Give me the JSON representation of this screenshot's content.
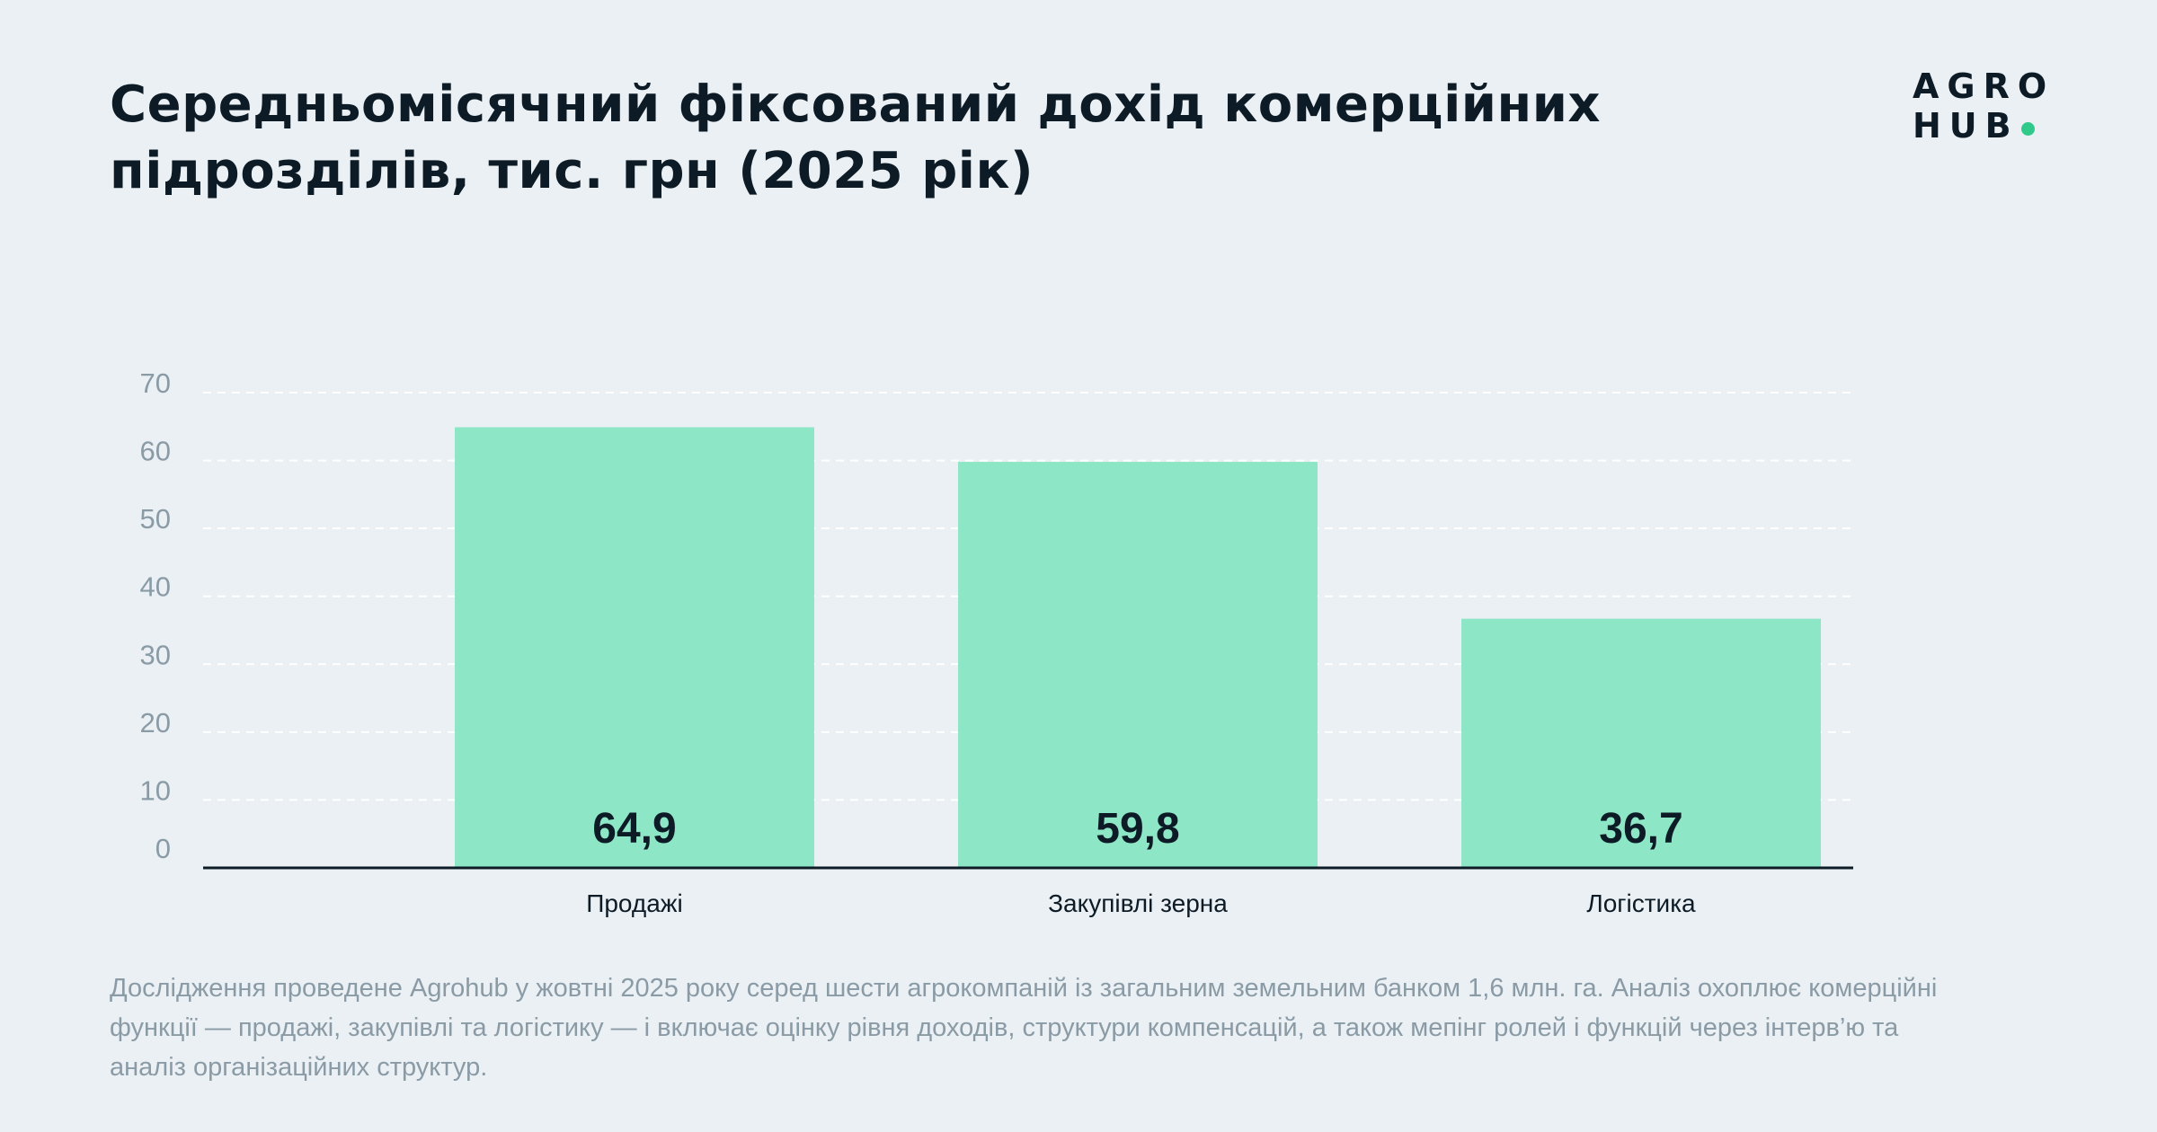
{
  "title": "Середньомісячний фіксований дохід комерційних підрозділів, тис. грн (2025 рік)",
  "logo": {
    "line1": "AGRO",
    "line2": "HUB"
  },
  "footnote": "Дослідження проведене Agrohub у жовтні 2025 року серед шести агрокомпаній із загальним земельним банком 1,6 млн. га. Аналіз охоплює комерційні функції — продажі, закупівлі та логістику — і включає оцінку рівня доходів, структури компенсацій, а також мепінг ролей і функцій через інтерв’ю та аналіз організаційних структур.",
  "colors": {
    "bar": "#8de6c5",
    "accent": "#2fca8a",
    "text": "#0d1b26",
    "muted": "#8a9ba6",
    "background": "#eaf0f4"
  },
  "chart_data": {
    "type": "bar",
    "title": "Середньомісячний фіксований дохід комерційних підрозділів, тис. грн (2025 рік)",
    "categories": [
      "Продажі",
      "Закупівлі зерна",
      "Логістика"
    ],
    "values": [
      64.9,
      59.8,
      36.7
    ],
    "value_labels": [
      "64,9",
      "59,8",
      "36,7"
    ],
    "yticks": [
      "0",
      "10",
      "20",
      "30",
      "40",
      "50",
      "60",
      "70"
    ],
    "ylim": [
      0,
      70
    ],
    "xlabel": "",
    "ylabel": "",
    "grid": true,
    "legend": "none"
  }
}
